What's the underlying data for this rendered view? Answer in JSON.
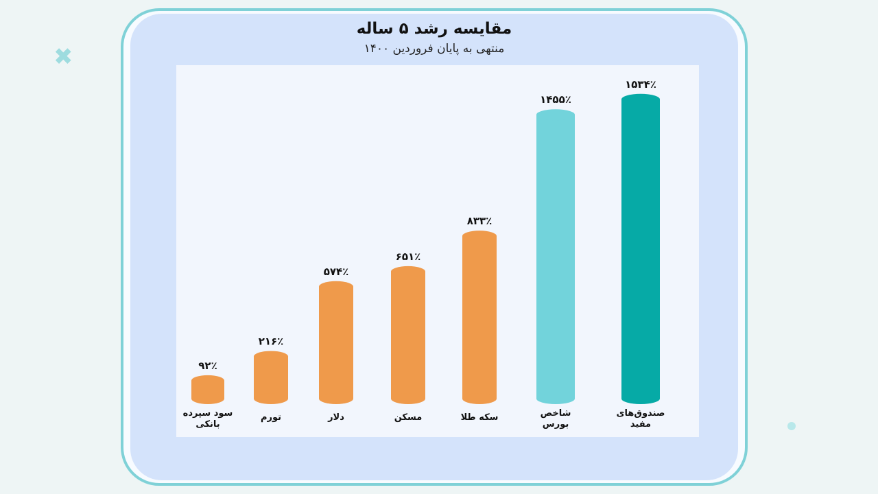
{
  "chart_data": {
    "type": "bar",
    "title": "مقایسه رشد ۵ ساله",
    "subtitle": "منتهی به پایان فروردین ۱۴۰۰",
    "categories": [
      "سود سپرده\nبانکی",
      "تورم",
      "دلار",
      "مسکن",
      "سکه طلا",
      "شاخص\nبورس",
      "صندوق‌های\nمفید"
    ],
    "values": [
      92,
      216,
      574,
      651,
      833,
      1455,
      1534
    ],
    "value_labels": [
      "۹۲٪",
      "۲۱۶٪",
      "۵۷۴٪",
      "۶۵۱٪",
      "۸۳۳٪",
      "۱۴۵۵٪",
      "۱۵۳۴٪"
    ],
    "colors": [
      "#ef9a4b",
      "#ef9a4b",
      "#ef9a4b",
      "#ef9a4b",
      "#ef9a4b",
      "#72d3db",
      "#06aaa6"
    ],
    "ylim": [
      0,
      1600
    ],
    "grid": false,
    "legend": "none"
  }
}
